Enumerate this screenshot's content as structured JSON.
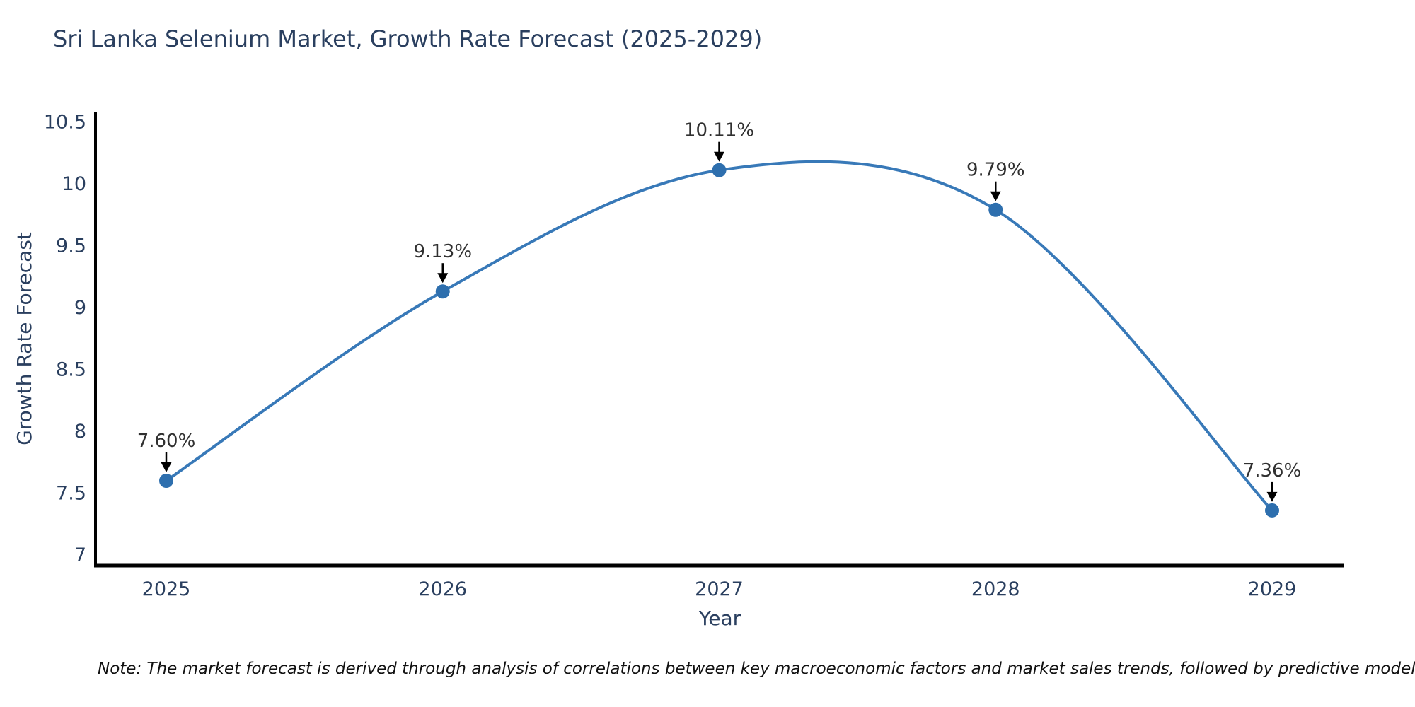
{
  "footnote": "Note: The market forecast is derived through analysis of correlations between key macroeconomic factors and market sales trends, followed by predictive modeling to project future sales",
  "chart_data": {
    "type": "line",
    "title": "Sri Lanka Selenium Market, Growth Rate Forecast (2025-2029)",
    "xlabel": "Year",
    "ylabel": "Growth Rate Forecast",
    "categories": [
      "2025",
      "2026",
      "2027",
      "2028",
      "2029"
    ],
    "values": [
      7.6,
      9.13,
      10.11,
      9.79,
      7.36
    ],
    "point_labels": [
      "7.60%",
      "9.13%",
      "10.11%",
      "9.79%",
      "7.36%"
    ],
    "yticks": [
      7,
      7.5,
      8,
      8.5,
      9,
      9.5,
      10,
      10.5
    ],
    "ylim": [
      6.91,
      10.67
    ],
    "line_shape": "spline",
    "grid": false,
    "legend": "none",
    "marker": "circle",
    "annotation_arrows": true,
    "colors": {
      "line": "#3879b8",
      "marker": "#2e6fae",
      "axis": "#000000",
      "text": "#2a3f5f",
      "annotation": "#303030",
      "arrow": "#000000",
      "background": "#ffffff"
    }
  }
}
